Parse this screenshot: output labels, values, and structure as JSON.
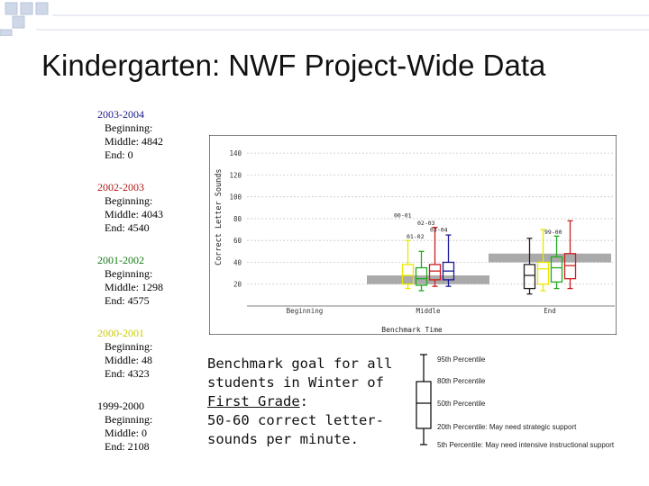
{
  "title": "Kindergarten: NWF Project-Wide Data",
  "years": [
    {
      "year": "2003-2004",
      "color": "#1a1a8c",
      "beginning": "Beginning:",
      "middle": "Middle: 4842",
      "end": "End: 0"
    },
    {
      "year": "2002-2003",
      "color": "#b01818",
      "beginning": "Beginning:",
      "middle": "Middle: 4043",
      "end": "End: 4540"
    },
    {
      "year": "2001-2002",
      "color": "#157a15",
      "beginning": "Beginning:",
      "middle": "Middle: 1298",
      "end": "End: 4575"
    },
    {
      "year": "2000-2001",
      "color": "#cccc00",
      "beginning": "Beginning:",
      "middle": "Middle: 48",
      "end": "End: 4323"
    },
    {
      "year": "1999-2000",
      "color": "#000000",
      "beginning": "Beginning:",
      "middle": "Middle: 0",
      "end": "End: 2108"
    }
  ],
  "benchmark": {
    "line1": "Benchmark goal for all",
    "line2": "students in Winter of",
    "line3_underlined": "First Grade",
    "line3_rest": ":",
    "line4": "50-60 correct letter-",
    "line5": "sounds per minute."
  },
  "legend": {
    "items": [
      "95th Percentile",
      "80th Percentile",
      "50th Percentile",
      "20th Percentile: May need strategic support",
      "5th Percentile: May need intensive instructional support"
    ]
  },
  "chart_data": {
    "type": "box",
    "ylabel": "Correct Letter Sounds",
    "xlabel": "Benchmark Time",
    "categories": [
      "Beginning",
      "Middle",
      "End"
    ],
    "yticks": [
      20,
      40,
      60,
      80,
      100,
      120,
      140
    ],
    "ylim": [
      0,
      150
    ],
    "benchmark_bands": [
      {
        "category": "Middle",
        "low": 20,
        "high": 28,
        "color": "#aaaaaa"
      },
      {
        "category": "End",
        "low": 40,
        "high": 48,
        "color": "#aaaaaa"
      }
    ],
    "series": [
      {
        "category": "Middle",
        "name": "00-01",
        "color": "#e8e800",
        "p5": 16,
        "p20": 20,
        "p50": 28,
        "p80": 38,
        "p95": 60
      },
      {
        "category": "Middle",
        "name": "01-02",
        "color": "#22aa22",
        "p5": 14,
        "p20": 19,
        "p50": 25,
        "p80": 35,
        "p95": 50
      },
      {
        "category": "Middle",
        "name": "02-03",
        "color": "#cc1f1f",
        "p5": 18,
        "p20": 24,
        "p50": 32,
        "p80": 38,
        "p95": 72
      },
      {
        "category": "Middle",
        "name": "03-04",
        "color": "#1a1a99",
        "p5": 18,
        "p20": 24,
        "p50": 32,
        "p80": 40,
        "p95": 65
      },
      {
        "category": "End",
        "name": "99-00",
        "color": "#222222",
        "p5": 11,
        "p20": 16,
        "p50": 28,
        "p80": 38,
        "p95": 62
      },
      {
        "category": "End",
        "name": "00-01",
        "color": "#e8e800",
        "p5": 14,
        "p20": 20,
        "p50": 34,
        "p80": 40,
        "p95": 70
      },
      {
        "category": "End",
        "name": "01-02",
        "color": "#22aa22",
        "p5": 16,
        "p20": 22,
        "p50": 35,
        "p80": 45,
        "p95": 64
      },
      {
        "category": "End",
        "name": "02-03",
        "color": "#cc1f1f",
        "p5": 16,
        "p20": 25,
        "p50": 37,
        "p80": 48,
        "p95": 78
      }
    ],
    "annotations": [
      {
        "text": "00-01",
        "category": "Middle",
        "y": 81
      },
      {
        "text": "02-03",
        "category": "Middle",
        "y": 74
      },
      {
        "text": "03-04",
        "category": "Middle",
        "y": 68
      },
      {
        "text": "01-02",
        "category": "Middle",
        "y": 62
      },
      {
        "text": "99-00",
        "category": "End",
        "y": 66
      }
    ]
  }
}
